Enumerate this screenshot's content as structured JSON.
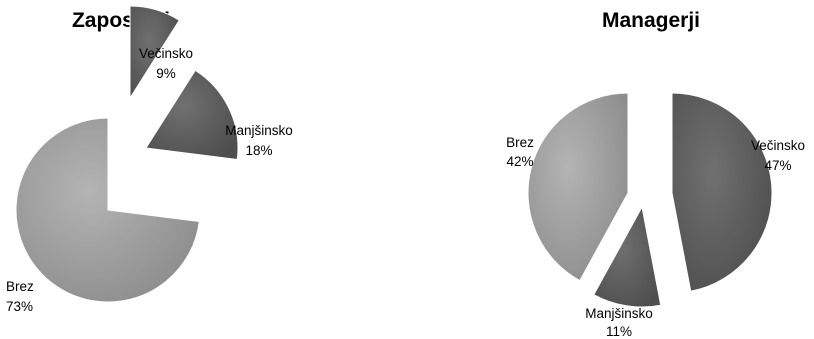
{
  "chart_data": [
    {
      "type": "pie",
      "title": "Zaposleni",
      "exploded": true,
      "slices": [
        {
          "label": "Večinsko",
          "value": 9,
          "display": "9%",
          "color": "#6b6b6b"
        },
        {
          "label": "Manjšinsko",
          "value": 18,
          "display": "18%",
          "color": "#5a5a5a"
        },
        {
          "label": "Brez",
          "value": 73,
          "display": "73%",
          "color": "#9a9a9a"
        }
      ]
    },
    {
      "type": "pie",
      "title": "Managerji",
      "exploded": true,
      "slices": [
        {
          "label": "Večinsko",
          "value": 47,
          "display": "47%",
          "color": "#5e5e5e"
        },
        {
          "label": "Manjšinsko",
          "value": 11,
          "display": "11%",
          "color": "#555555"
        },
        {
          "label": "Brez",
          "value": 42,
          "display": "42%",
          "color": "#9c9c9c"
        }
      ]
    }
  ]
}
